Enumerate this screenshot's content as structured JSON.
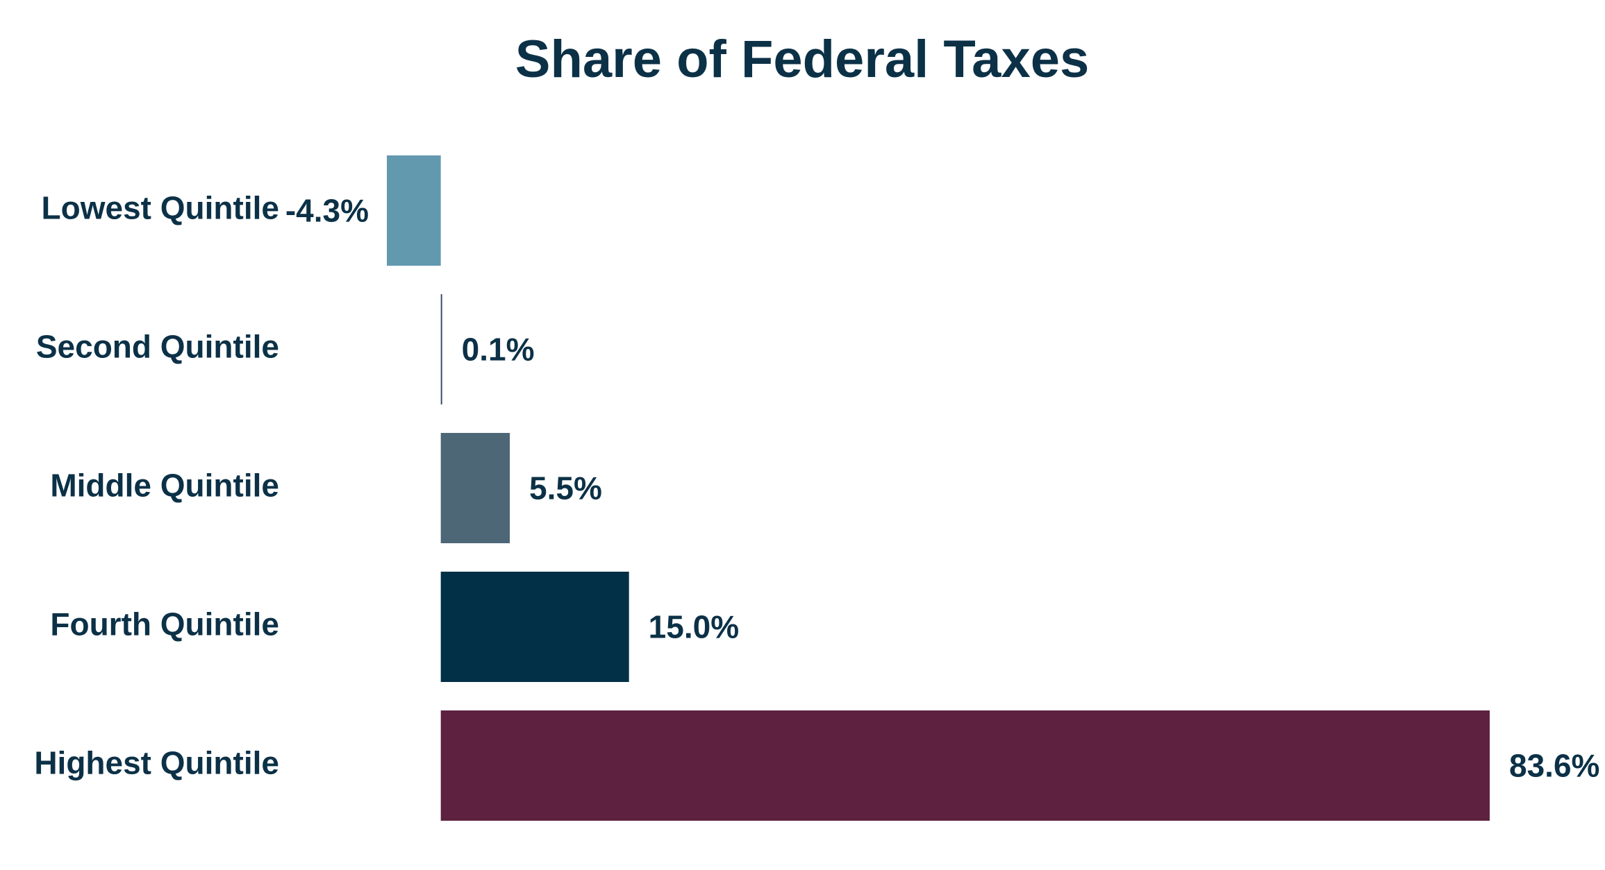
{
  "chart_data": {
    "type": "hbar",
    "title": "Share of Federal Taxes",
    "categories": [
      "Lowest Quintile",
      "Second Quintile",
      "Middle Quintile",
      "Fourth Quintile",
      "Highest Quintile"
    ],
    "values": [
      -4.3,
      0.1,
      5.5,
      15.0,
      83.6
    ],
    "value_labels": [
      "-4.3%",
      "0.1%",
      "5.5%",
      "15.0%",
      "83.6%"
    ],
    "colors": [
      "#6399af",
      "#3a4f6e",
      "#4d6776",
      "#023047",
      "#5e2240"
    ],
    "grid": false
  }
}
